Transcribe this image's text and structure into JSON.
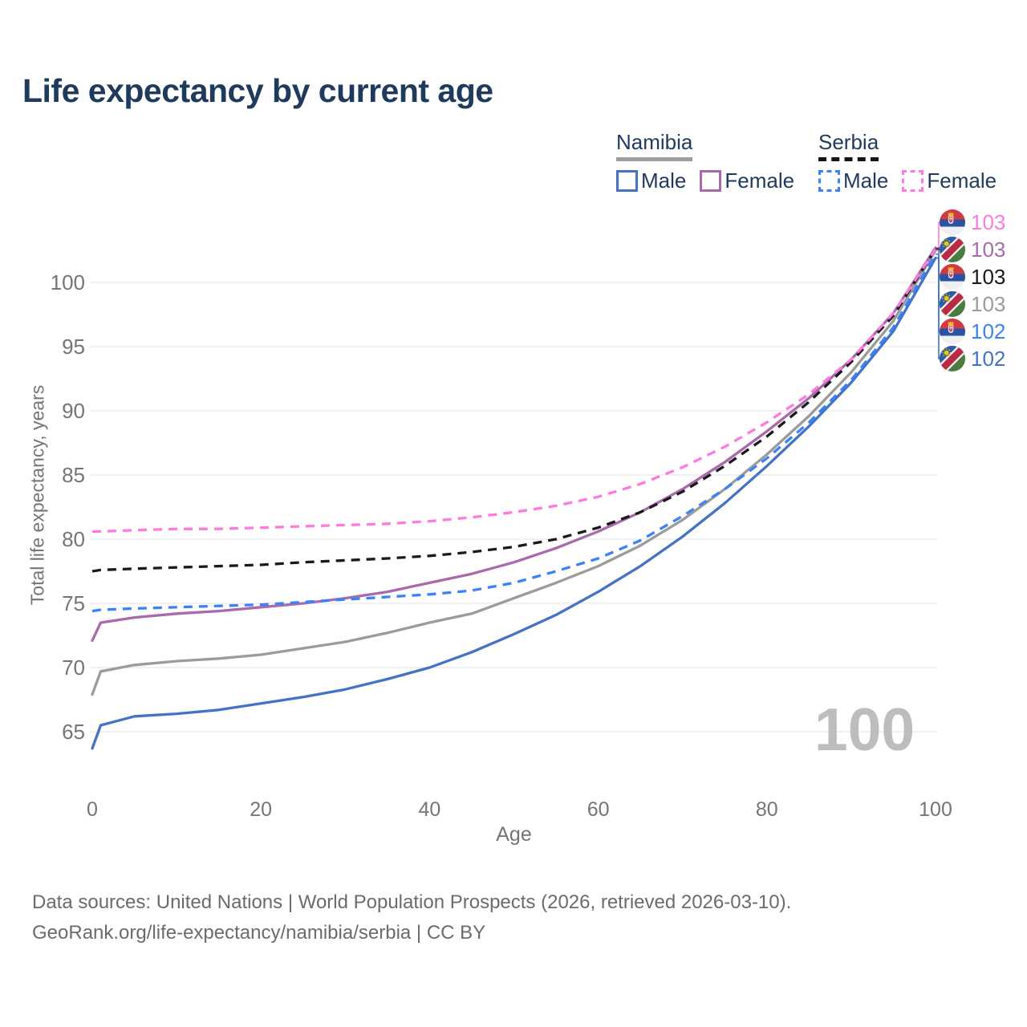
{
  "header": {
    "title": "Life expectancy by current age"
  },
  "legend": {
    "groups": [
      {
        "id": "namibia",
        "label": "Namibia",
        "style": "solid",
        "items": [
          {
            "label": "Male",
            "series": "Namibia Male"
          },
          {
            "label": "Female",
            "series": "Namibia Female"
          }
        ]
      },
      {
        "id": "serbia",
        "label": "Serbia",
        "style": "dashed",
        "items": [
          {
            "label": "Male",
            "series": "Serbia Male"
          },
          {
            "label": "Female",
            "series": "Serbia Female"
          }
        ]
      }
    ]
  },
  "chart_data": {
    "type": "line",
    "title": "Life expectancy by current age",
    "xlabel": "Age",
    "ylabel": "Total life expectancy, years",
    "xlim": [
      0,
      100
    ],
    "ylim": [
      63,
      104.5
    ],
    "xticks": [
      0,
      20,
      40,
      60,
      80,
      100
    ],
    "yticks": [
      65,
      70,
      75,
      80,
      85,
      90,
      95,
      100
    ],
    "grid": "horizontal-only",
    "legend_position": "top-right",
    "age_watermark": "100",
    "x": [
      0,
      1,
      5,
      10,
      15,
      20,
      25,
      30,
      35,
      40,
      45,
      50,
      55,
      60,
      65,
      70,
      75,
      80,
      85,
      90,
      95,
      100
    ],
    "series": [
      {
        "name": "Namibia Male",
        "country": "Namibia",
        "sex": "Male",
        "style": "solid",
        "color": "#4472C4",
        "values": [
          63.7,
          65.5,
          66.2,
          66.4,
          66.7,
          67.2,
          67.7,
          68.3,
          69.1,
          70.0,
          71.2,
          72.6,
          74.1,
          75.9,
          77.9,
          80.2,
          82.8,
          85.7,
          88.8,
          92.2,
          96.2,
          101.9
        ]
      },
      {
        "name": "Namibia Total",
        "country": "Namibia",
        "sex": "Both",
        "style": "solid",
        "color": "#9B9B9B",
        "values": [
          67.9,
          69.7,
          70.2,
          70.5,
          70.7,
          71.0,
          71.5,
          72.0,
          72.7,
          73.5,
          74.2,
          75.4,
          76.6,
          77.9,
          79.5,
          81.5,
          83.9,
          86.6,
          89.6,
          93.0,
          97.0,
          102.5
        ]
      },
      {
        "name": "Namibia Female",
        "country": "Namibia",
        "sex": "Female",
        "style": "solid",
        "color": "#A86AAB",
        "values": [
          72.1,
          73.5,
          73.9,
          74.2,
          74.4,
          74.7,
          75.0,
          75.4,
          75.9,
          76.6,
          77.3,
          78.2,
          79.3,
          80.6,
          82.1,
          83.9,
          86.0,
          88.4,
          91.0,
          94.0,
          97.6,
          102.7
        ]
      },
      {
        "name": "Serbia Male",
        "country": "Serbia",
        "sex": "Male",
        "style": "dashed",
        "color": "#3B82F6",
        "values": [
          74.4,
          74.5,
          74.6,
          74.7,
          74.8,
          74.9,
          75.1,
          75.3,
          75.5,
          75.7,
          76.0,
          76.6,
          77.5,
          78.5,
          79.9,
          81.8,
          83.9,
          86.3,
          89.1,
          92.4,
          96.5,
          102.2
        ]
      },
      {
        "name": "Serbia Total",
        "country": "Serbia",
        "sex": "Both",
        "style": "dashed",
        "color": "#1A1A1A",
        "values": [
          77.5,
          77.6,
          77.7,
          77.8,
          77.9,
          78.0,
          78.2,
          78.35,
          78.5,
          78.7,
          79.0,
          79.4,
          80.0,
          80.9,
          82.1,
          83.7,
          85.7,
          88.0,
          90.7,
          93.8,
          97.4,
          102.6
        ]
      },
      {
        "name": "Serbia Female",
        "country": "Serbia",
        "sex": "Female",
        "style": "dashed",
        "color": "#FF7ADE",
        "values": [
          80.6,
          80.6,
          80.7,
          80.8,
          80.8,
          80.9,
          81.0,
          81.1,
          81.2,
          81.4,
          81.7,
          82.1,
          82.6,
          83.3,
          84.3,
          85.6,
          87.2,
          89.1,
          91.3,
          94.0,
          97.6,
          102.6
        ]
      }
    ],
    "end_labels": [
      {
        "series": "Serbia Female",
        "flag": "serbia",
        "value": "103",
        "color": "#FF7ADE"
      },
      {
        "series": "Namibia Female",
        "flag": "namibia",
        "value": "103",
        "color": "#A86AAB"
      },
      {
        "series": "Serbia Total",
        "flag": "serbia",
        "value": "103",
        "color": "#1A1A1A"
      },
      {
        "series": "Namibia Total",
        "flag": "namibia",
        "value": "103",
        "color": "#9B9B9B"
      },
      {
        "series": "Serbia Male",
        "flag": "serbia",
        "value": "102",
        "color": "#3B82F6"
      },
      {
        "series": "Namibia Male",
        "flag": "namibia",
        "value": "102",
        "color": "#4472C4"
      }
    ],
    "colors": {
      "grid": "#EBEBED",
      "axis_text": "#757575",
      "title_text": "#1E3A5C",
      "watermark": "#BDBDBD",
      "namibia_underline": "#9E9E9E",
      "serbia_underline": "#141414",
      "footer_text": "#6B6B6B"
    }
  },
  "footer": {
    "line1": "Data sources: United Nations | World Population Prospects (2026, retrieved 2026-03-10).",
    "line2": "GeoRank.org/life-expectancy/namibia/serbia | CC BY"
  }
}
